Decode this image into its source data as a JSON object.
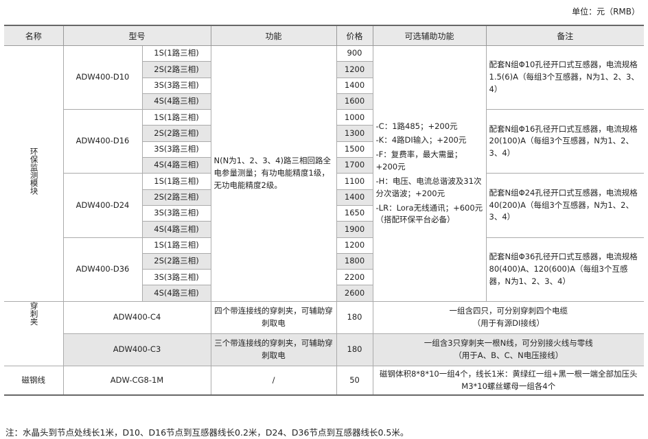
{
  "unit": "单位：元（RMB）",
  "headers": [
    "名称",
    "型号",
    "功能",
    "价格",
    "可选辅助功能",
    "备注"
  ],
  "groups": [
    {
      "name": "环保监测模块",
      "function": "N(N为1、2、3、4)路三相回路全电参量测量；有功电能精度1级，无功电能精度2级。",
      "aux": [
        "-C：1路485；+200元",
        "-K：4路DI输入；+200元",
        "-F：复费率，最大需量；+200元",
        "-H：电压、电流总谐波及31次分次谐波；+200元",
        "-LR：Lora无线通讯；+600元（搭配环保平台必备）"
      ],
      "models": [
        {
          "model": "ADW400-D10",
          "variants": [
            "1S(1路三相)",
            "2S(2路三相)",
            "3S(3路三相)",
            "4S(4路三相)"
          ],
          "prices": [
            "900",
            "1200",
            "1400",
            "1600"
          ],
          "note": "配套N组Φ10孔径开口式互感器，电流规格1.5(6)A（每组3个互感器，N为1、2、3、4）"
        },
        {
          "model": "ADW400-D16",
          "variants": [
            "1S(1路三相)",
            "2S(2路三相)",
            "3S(3路三相)",
            "4S(4路三相)"
          ],
          "prices": [
            "1000",
            "1300",
            "1500",
            "1700"
          ],
          "note": "配套N组Φ16孔径开口式互感器，电流规格20(100)A（每组3个互感器，N为1、2、3、4）"
        },
        {
          "model": "ADW400-D24",
          "variants": [
            "1S(1路三相)",
            "2S(2路三相)",
            "3S(3路三相)",
            "4S(4路三相)"
          ],
          "prices": [
            "1100",
            "1400",
            "1650",
            "1900"
          ],
          "note": "配套N组Φ24孔径开口式互感器，电流规格40(200)A（每组3个互感器，N为1、2、3、4）"
        },
        {
          "model": "ADW400-D36",
          "variants": [
            "1S(1路三相)",
            "2S(2路三相)",
            "3S(3路三相)",
            "4S(4路三相)"
          ],
          "prices": [
            "1200",
            "1800",
            "2200",
            "2600"
          ],
          "note": "配套N组Φ36孔径开口式互感器，电流规格80(400)A、120(600)A（每组3个互感器，N为1、2、3、4）"
        }
      ]
    },
    {
      "name": "穿刺夹",
      "rows": [
        {
          "model": "ADW400-C4",
          "function": "四个带连接线的穿刺夹，可辅助穿刺取电",
          "price": "180",
          "note": "一组含四只，可分别穿刺四个电缆",
          "note2": "（用于有源DI接线）"
        },
        {
          "model": "ADW400-C3",
          "function": "三个带连接线的穿刺夹，可辅助穿刺取电",
          "price": "180",
          "note": "一组含3只穿刺夹一根N线，可分别接火线与零线",
          "note2": "（用于A、B、C、N电压接线）"
        }
      ]
    },
    {
      "name": "磁钢线",
      "rows": [
        {
          "model": "ADW-CG8-1M",
          "function": "/",
          "price": "50",
          "note": "磁钢体积8*8*10一组4个，线长1米：黄绿红一组+黑一根一端全部加压头M3*10螺丝螺母一组各4个"
        }
      ]
    }
  ],
  "footnote": "注：水晶头到节点处线长1米，D10、D16节点到互感器线长0.2米，D24、D36节点到互感器线长0.5米。"
}
